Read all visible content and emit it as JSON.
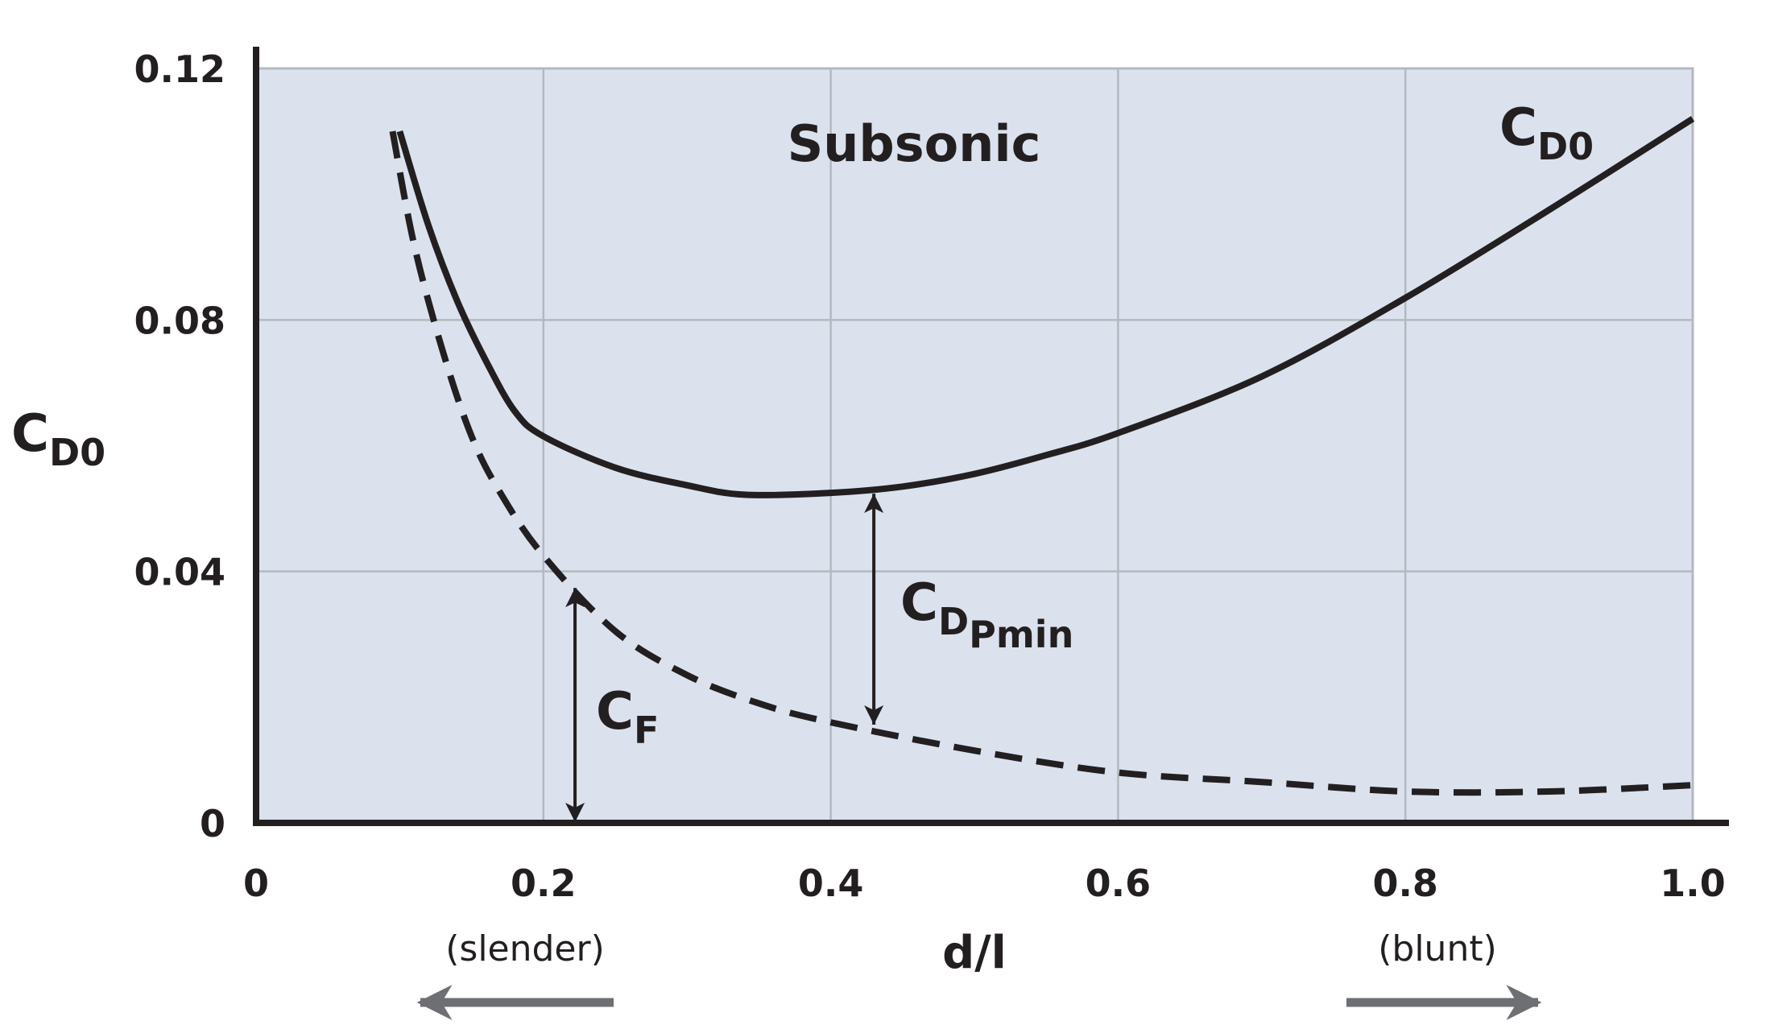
{
  "chart_data": {
    "type": "line",
    "xlim": [
      0,
      1.0
    ],
    "ylim": [
      0,
      0.12
    ],
    "x_ticks": [
      "0",
      "0.2",
      "0.4",
      "0.6",
      "0.8",
      "1.0"
    ],
    "y_ticks": [
      "0",
      "0.04",
      "0.08",
      "0.12"
    ],
    "xlabel": "d/l",
    "ylabel": {
      "main": "C",
      "sub": "D0"
    },
    "x_notes": {
      "left": "(slender)",
      "right": "(blunt)"
    },
    "region_label": "Subsonic",
    "grid": true,
    "background_color": "#dbe2ee",
    "series": [
      {
        "label": {
          "main": "C",
          "sub": "D0"
        },
        "style": "solid",
        "x": [
          0.1,
          0.12,
          0.14,
          0.16,
          0.18,
          0.2,
          0.25,
          0.3,
          0.34,
          0.4,
          0.45,
          0.5,
          0.55,
          0.6,
          0.7,
          0.8,
          0.9,
          1.0
        ],
        "y": [
          0.11,
          0.095,
          0.083,
          0.0735,
          0.0655,
          0.0615,
          0.0565,
          0.0537,
          0.0522,
          0.0525,
          0.0535,
          0.0555,
          0.0585,
          0.062,
          0.071,
          0.0835,
          0.0975,
          0.112
        ]
      },
      {
        "label": {
          "main": "C",
          "sub": "F"
        },
        "style": "dashed",
        "x": [
          0.095,
          0.11,
          0.13,
          0.15,
          0.17,
          0.2,
          0.25,
          0.3,
          0.35,
          0.4,
          0.5,
          0.6,
          0.7,
          0.8,
          0.9,
          1.0
        ],
        "y": [
          0.11,
          0.092,
          0.075,
          0.0615,
          0.0525,
          0.0425,
          0.0305,
          0.0235,
          0.019,
          0.016,
          0.0115,
          0.008,
          0.0065,
          0.005,
          0.005,
          0.006
        ]
      }
    ],
    "annotations": [
      {
        "label": {
          "main": "C",
          "sub": "D",
          "subsub": "Pmin"
        },
        "x": 0.43,
        "from_y": 0.0155,
        "to_y": 0.0525
      },
      {
        "label": {
          "main": "C",
          "sub": "F"
        },
        "x": 0.222,
        "from_y": 0,
        "to_y": 0.0375
      }
    ],
    "colors": {
      "curve": "#231f20",
      "axis": "#231f20",
      "grid": "#b4b8bf",
      "direction_arrows": "#6e6f73"
    }
  }
}
